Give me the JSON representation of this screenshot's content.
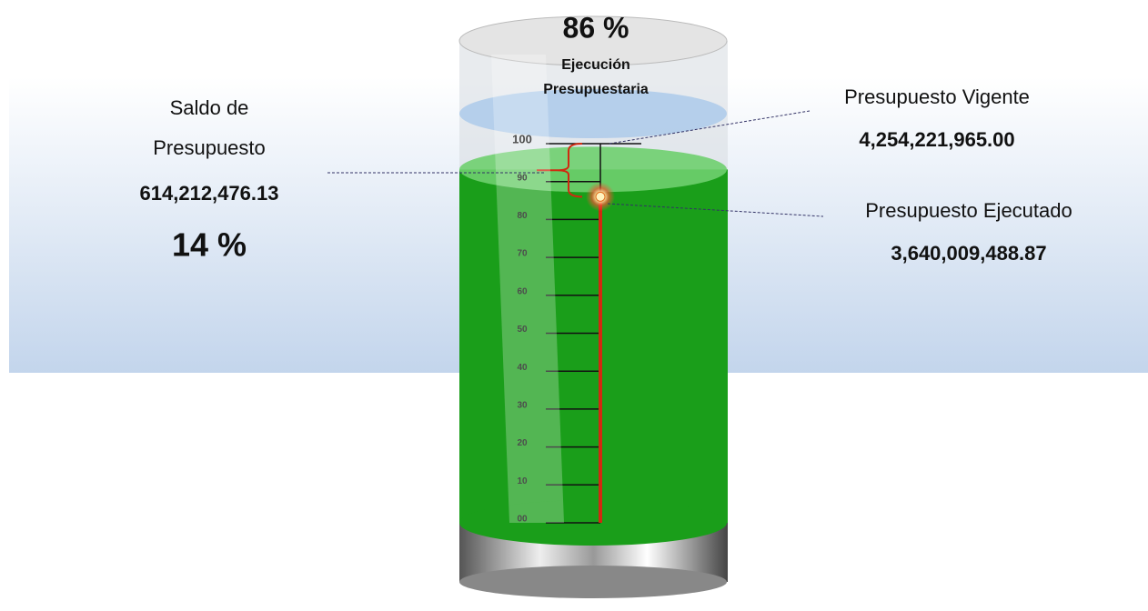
{
  "chart_data": {
    "type": "gauge",
    "title": [
      "Ejecución",
      "Presupuestaria"
    ],
    "values": [
      86,
      14
    ],
    "value_labels": [
      "86 %",
      "14 %"
    ],
    "color": "#1a9e1a",
    "ylim": [
      0,
      100
    ],
    "yticks": [
      {
        "value": 0,
        "label": "00"
      },
      10,
      20,
      30,
      40,
      50,
      60,
      70,
      80,
      90,
      100
    ],
    "annotations": {
      "saldo": {
        "label": [
          "Saldo de",
          "Presupuesto"
        ],
        "amount": "614,212,476.13"
      },
      "vigente": {
        "label": "Presupuesto Vigente",
        "amount": "4,254,221,965.00"
      },
      "ejecutado": {
        "label": "Presupuesto Ejecutado",
        "amount": "3,640,009,488.87"
      }
    }
  }
}
